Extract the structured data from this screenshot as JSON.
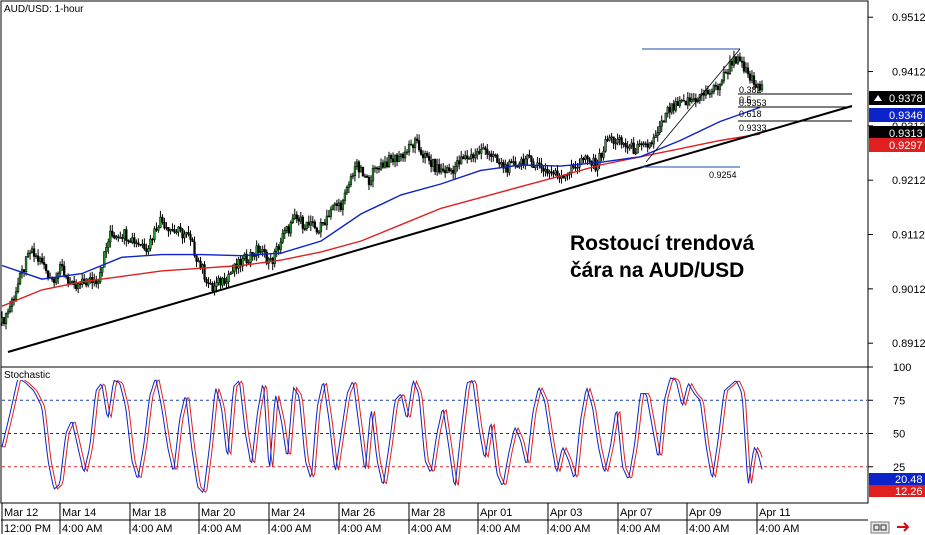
{
  "chart_data": [
    {
      "type": "candlestick",
      "title": "AUD/USD: 1-hour",
      "annotation": [
        "Rostoucí trendová",
        "čára na AUD/USD"
      ],
      "ylim": [
        0.887,
        0.954
      ],
      "yticks": [
        "0.9512",
        "0.9412",
        "0.9312",
        "0.9212",
        "0.9112",
        "0.9012",
        "0.8912"
      ],
      "price_tags": [
        {
          "label": "0.9378",
          "bg": "#000000",
          "fg": "#ffffff",
          "marker": true
        },
        {
          "label": "0.9346",
          "bg": "#0b23c8",
          "fg": "#ffffff"
        },
        {
          "label": "0.9313",
          "bg": "#000000",
          "fg": "#ffffff"
        },
        {
          "label": "0.9297",
          "bg": "#e02020",
          "fg": "#ffffff"
        }
      ],
      "fib_labels": [
        "0.382",
        "0.5",
        "0.618",
        "0.9353",
        "0.9333"
      ],
      "low_label": "0.9254",
      "close_path": [
        [
          0,
          0.895
        ],
        [
          8,
          0.898
        ],
        [
          20,
          0.904
        ],
        [
          28,
          0.908
        ],
        [
          40,
          0.906
        ],
        [
          50,
          0.903
        ],
        [
          60,
          0.905
        ],
        [
          72,
          0.901
        ],
        [
          84,
          0.9025
        ],
        [
          96,
          0.903
        ],
        [
          108,
          0.911
        ],
        [
          122,
          0.9115
        ],
        [
          134,
          0.91
        ],
        [
          146,
          0.909
        ],
        [
          158,
          0.914
        ],
        [
          172,
          0.912
        ],
        [
          186,
          0.911
        ],
        [
          198,
          0.906
        ],
        [
          210,
          0.901
        ],
        [
          222,
          0.903
        ],
        [
          234,
          0.905
        ],
        [
          246,
          0.907
        ],
        [
          258,
          0.9085
        ],
        [
          270,
          0.906
        ],
        [
          282,
          0.911
        ],
        [
          294,
          0.914
        ],
        [
          306,
          0.913
        ],
        [
          318,
          0.912
        ],
        [
          330,
          0.916
        ],
        [
          342,
          0.917
        ],
        [
          354,
          0.924
        ],
        [
          366,
          0.921
        ],
        [
          378,
          0.924
        ],
        [
          392,
          0.925
        ],
        [
          402,
          0.926
        ],
        [
          414,
          0.928
        ],
        [
          426,
          0.925
        ],
        [
          438,
          0.923
        ],
        [
          450,
          0.923
        ],
        [
          462,
          0.925
        ],
        [
          474,
          0.926
        ],
        [
          486,
          0.927
        ],
        [
          498,
          0.924
        ],
        [
          510,
          0.9235
        ],
        [
          522,
          0.925
        ],
        [
          534,
          0.9245
        ],
        [
          546,
          0.923
        ],
        [
          558,
          0.922
        ],
        [
          570,
          0.923
        ],
        [
          582,
          0.925
        ],
        [
          596,
          0.924
        ],
        [
          608,
          0.929
        ],
        [
          620,
          0.928
        ],
        [
          632,
          0.927
        ],
        [
          644,
          0.927
        ],
        [
          656,
          0.929
        ],
        [
          668,
          0.934
        ],
        [
          680,
          0.935
        ],
        [
          692,
          0.936
        ],
        [
          704,
          0.937
        ],
        [
          716,
          0.938
        ],
        [
          726,
          0.941
        ],
        [
          734,
          0.944
        ],
        [
          742,
          0.942
        ],
        [
          750,
          0.94
        ],
        [
          758,
          0.938
        ],
        [
          762,
          0.9378
        ]
      ],
      "sma_blue": [
        [
          0,
          0.9055
        ],
        [
          40,
          0.903
        ],
        [
          80,
          0.904
        ],
        [
          120,
          0.907
        ],
        [
          160,
          0.9075
        ],
        [
          200,
          0.9075
        ],
        [
          240,
          0.9073
        ],
        [
          280,
          0.9078
        ],
        [
          320,
          0.91
        ],
        [
          360,
          0.915
        ],
        [
          400,
          0.9185
        ],
        [
          440,
          0.9205
        ],
        [
          480,
          0.923
        ],
        [
          520,
          0.924
        ],
        [
          560,
          0.9238
        ],
        [
          600,
          0.9245
        ],
        [
          640,
          0.9255
        ],
        [
          680,
          0.9285
        ],
        [
          720,
          0.932
        ],
        [
          760,
          0.9346
        ]
      ],
      "sma_red": [
        [
          0,
          0.898
        ],
        [
          40,
          0.901
        ],
        [
          80,
          0.9025
        ],
        [
          120,
          0.9035
        ],
        [
          160,
          0.9045
        ],
        [
          200,
          0.905
        ],
        [
          240,
          0.9055
        ],
        [
          280,
          0.9065
        ],
        [
          320,
          0.908
        ],
        [
          360,
          0.91
        ],
        [
          400,
          0.913
        ],
        [
          440,
          0.916
        ],
        [
          480,
          0.918
        ],
        [
          520,
          0.92
        ],
        [
          560,
          0.922
        ],
        [
          600,
          0.924
        ],
        [
          640,
          0.9255
        ],
        [
          680,
          0.927
        ],
        [
          720,
          0.9285
        ],
        [
          760,
          0.9297
        ]
      ]
    },
    {
      "type": "line",
      "title": "Stochastic",
      "ylim": [
        0,
        100
      ],
      "yticks": [
        "100",
        "75",
        "50",
        "25"
      ],
      "levels": [
        75,
        50,
        25
      ],
      "price_tags": [
        {
          "label": "20.48",
          "bg": "#0b23c8",
          "fg": "#ffffff"
        },
        {
          "label": "12.26",
          "bg": "#e02020",
          "fg": "#ffffff"
        }
      ],
      "swings": [
        [
          0,
          40
        ],
        [
          8,
          65
        ],
        [
          16,
          92
        ],
        [
          24,
          88
        ],
        [
          32,
          82
        ],
        [
          40,
          70
        ],
        [
          46,
          30
        ],
        [
          52,
          8
        ],
        [
          58,
          12
        ],
        [
          64,
          50
        ],
        [
          70,
          60
        ],
        [
          76,
          40
        ],
        [
          82,
          20
        ],
        [
          88,
          40
        ],
        [
          94,
          82
        ],
        [
          100,
          88
        ],
        [
          106,
          60
        ],
        [
          112,
          90
        ],
        [
          118,
          88
        ],
        [
          124,
          70
        ],
        [
          130,
          30
        ],
        [
          136,
          15
        ],
        [
          142,
          40
        ],
        [
          148,
          78
        ],
        [
          154,
          92
        ],
        [
          160,
          70
        ],
        [
          166,
          40
        ],
        [
          172,
          20
        ],
        [
          178,
          60
        ],
        [
          184,
          80
        ],
        [
          190,
          40
        ],
        [
          196,
          10
        ],
        [
          202,
          5
        ],
        [
          208,
          40
        ],
        [
          214,
          85
        ],
        [
          220,
          70
        ],
        [
          226,
          30
        ],
        [
          232,
          85
        ],
        [
          238,
          90
        ],
        [
          244,
          50
        ],
        [
          250,
          25
        ],
        [
          256,
          65
        ],
        [
          262,
          90
        ],
        [
          268,
          20
        ],
        [
          274,
          80
        ],
        [
          280,
          60
        ],
        [
          286,
          30
        ],
        [
          292,
          85
        ],
        [
          298,
          78
        ],
        [
          304,
          30
        ],
        [
          310,
          15
        ],
        [
          316,
          70
        ],
        [
          322,
          90
        ],
        [
          328,
          60
        ],
        [
          334,
          20
        ],
        [
          340,
          50
        ],
        [
          346,
          80
        ],
        [
          352,
          90
        ],
        [
          358,
          55
        ],
        [
          364,
          20
        ],
        [
          370,
          70
        ],
        [
          376,
          30
        ],
        [
          382,
          10
        ],
        [
          388,
          40
        ],
        [
          394,
          75
        ],
        [
          400,
          80
        ],
        [
          406,
          60
        ],
        [
          412,
          90
        ],
        [
          418,
          80
        ],
        [
          424,
          30
        ],
        [
          430,
          20
        ],
        [
          436,
          50
        ],
        [
          442,
          70
        ],
        [
          448,
          40
        ],
        [
          454,
          8
        ],
        [
          460,
          50
        ],
        [
          466,
          88
        ],
        [
          472,
          90
        ],
        [
          478,
          55
        ],
        [
          484,
          30
        ],
        [
          490,
          60
        ],
        [
          496,
          20
        ],
        [
          502,
          10
        ],
        [
          508,
          35
        ],
        [
          514,
          55
        ],
        [
          520,
          45
        ],
        [
          526,
          25
        ],
        [
          532,
          65
        ],
        [
          538,
          85
        ],
        [
          544,
          75
        ],
        [
          550,
          45
        ],
        [
          556,
          20
        ],
        [
          562,
          40
        ],
        [
          568,
          30
        ],
        [
          574,
          15
        ],
        [
          580,
          60
        ],
        [
          586,
          85
        ],
        [
          592,
          70
        ],
        [
          598,
          40
        ],
        [
          604,
          20
        ],
        [
          610,
          40
        ],
        [
          616,
          70
        ],
        [
          622,
          25
        ],
        [
          628,
          15
        ],
        [
          634,
          40
        ],
        [
          640,
          80
        ],
        [
          646,
          80
        ],
        [
          652,
          55
        ],
        [
          658,
          30
        ],
        [
          664,
          75
        ],
        [
          670,
          92
        ],
        [
          676,
          90
        ],
        [
          682,
          70
        ],
        [
          688,
          88
        ],
        [
          694,
          80
        ],
        [
          700,
          75
        ],
        [
          706,
          40
        ],
        [
          712,
          15
        ],
        [
          718,
          45
        ],
        [
          724,
          82
        ],
        [
          730,
          86
        ],
        [
          736,
          90
        ],
        [
          742,
          80
        ],
        [
          748,
          10
        ],
        [
          754,
          40
        ],
        [
          758,
          35
        ],
        [
          763,
          20
        ]
      ]
    }
  ],
  "xaxis": {
    "date_labels": [
      "Mar 12",
      "Mar 14",
      "Mar 18",
      "Mar 20",
      "Mar 24",
      "Mar 26",
      "Mar 28",
      "Apr 01",
      "Apr 03",
      "Apr 07",
      "Apr 09",
      "Apr 11"
    ],
    "time_labels": [
      "12:00 PM",
      "4:00 AM",
      "4:00 AM",
      "4:00 AM",
      "4:00 AM",
      "4:00 AM",
      "4:00 AM",
      "4:00 AM",
      "4:00 AM",
      "4:00 AM",
      "4:00 AM",
      "4:00 AM"
    ]
  },
  "colors": {
    "candle_up": "#000000",
    "candle_down": "#000000",
    "sma_fast": "#0b23c8",
    "sma_slow": "#e02020",
    "stoch_k": "#0b23c8",
    "stoch_d": "#e02020",
    "trendline": "#000000",
    "fib": "#000000",
    "fib_blue": "#1b4fa8"
  },
  "icons": {
    "scroll": "chart-scroll-icon",
    "close": "close-panel-icon"
  }
}
